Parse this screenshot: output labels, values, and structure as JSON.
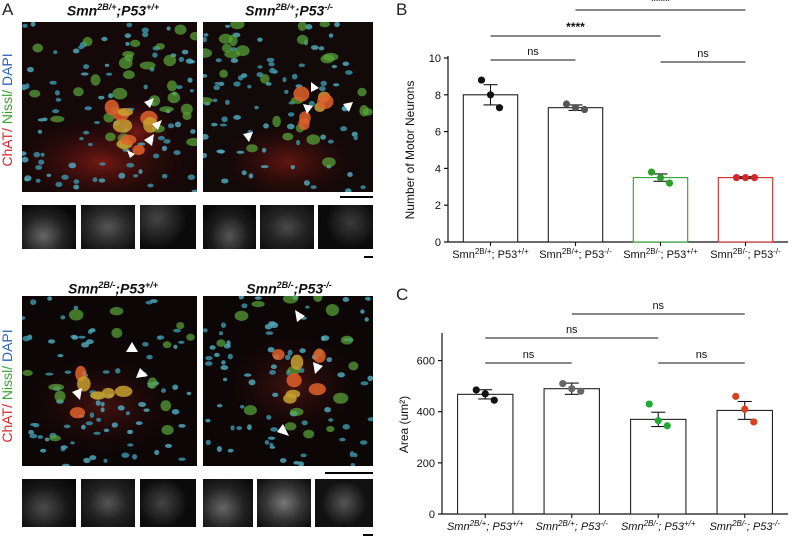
{
  "panel_labels": {
    "a": "A",
    "b": "B",
    "c": "C"
  },
  "panel_a": {
    "genotypes": [
      {
        "pre": "Smn",
        "sup1": "2B/+",
        "mid": ";P53",
        "sup2": "+/+"
      },
      {
        "pre": "Smn",
        "sup1": "2B/+",
        "mid": ";P53",
        "sup2": "-/-"
      },
      {
        "pre": "Smn",
        "sup1": "2B/-",
        "mid": ";P53",
        "sup2": "+/+"
      },
      {
        "pre": "Smn",
        "sup1": "2B/-",
        "mid": ";P53",
        "sup2": "-/-"
      }
    ],
    "stain_label": {
      "chat": "ChAT/",
      "nissl": " Nissl/",
      "dapi": " DAPI"
    },
    "colors": {
      "chat": "#d8242a",
      "nissl": "#3aa332",
      "dapi": "#2d64b8"
    }
  },
  "chart_data": [
    {
      "type": "bar",
      "panel": "B",
      "ylabel": "Number of Motor Neurons",
      "ylim": [
        0,
        10
      ],
      "yticks": [
        0,
        2,
        4,
        6,
        8,
        10
      ],
      "categories": [
        {
          "pre": "Smn",
          "sup1": "2B/+",
          "mid": "; P53",
          "sup2": "+/+"
        },
        {
          "pre": "Smn",
          "sup1": "2B/+",
          "mid": "; P53",
          "sup2": "-/-"
        },
        {
          "pre": "Smn",
          "sup1": "2B/-",
          "mid": "; P53",
          "sup2": "+/+"
        },
        {
          "pre": "Smn",
          "sup1": "2B/-",
          "mid": "; P53",
          "sup2": "-/-"
        }
      ],
      "values": [
        8.0,
        7.3,
        3.5,
        3.5
      ],
      "errors": [
        0.55,
        0.15,
        0.2,
        0.05
      ],
      "points": [
        [
          8.8,
          8.0,
          7.3
        ],
        [
          7.5,
          7.3,
          7.2
        ],
        [
          3.8,
          3.5,
          3.2
        ],
        [
          3.5,
          3.5,
          3.5
        ]
      ],
      "bar_colors": [
        "#222222",
        "#222222",
        "#2ca02c",
        "#d62728"
      ],
      "point_colors": [
        "#111111",
        "#555555",
        "#2ca02c",
        "#d62728"
      ],
      "comparisons": [
        {
          "from": 0,
          "to": 1,
          "label": "ns"
        },
        {
          "from": 2,
          "to": 3,
          "label": "ns"
        },
        {
          "from": 0,
          "to": 2,
          "label": "****"
        },
        {
          "from": 1,
          "to": 3,
          "label": "****"
        }
      ],
      "grid": false,
      "italic_ticks": false
    },
    {
      "type": "bar",
      "panel": "C",
      "ylabel": "Area (um²)",
      "ylim": [
        0,
        700
      ],
      "yticks": [
        0,
        200,
        400,
        600
      ],
      "categories": [
        {
          "pre": "Smn",
          "sup1": "2B/+",
          "mid": "; P53",
          "sup2": "+/+"
        },
        {
          "pre": "Smn",
          "sup1": "2B/+",
          "mid": "; P53",
          "sup2": "-/-"
        },
        {
          "pre": "Smn",
          "sup1": "2B/-",
          "mid": "; P53",
          "sup2": "+/+"
        },
        {
          "pre": "Smn",
          "sup1": "2B/-",
          "mid": "; P53",
          "sup2": "-/-"
        }
      ],
      "values": [
        468,
        490,
        370,
        405
      ],
      "errors": [
        18,
        22,
        28,
        35
      ],
      "points": [
        [
          485,
          470,
          445
        ],
        [
          510,
          490,
          480
        ],
        [
          430,
          365,
          345
        ],
        [
          460,
          410,
          360
        ]
      ],
      "bar_colors": [
        "#222222",
        "#222222",
        "#222222",
        "#222222"
      ],
      "point_colors": [
        "#111111",
        "#666666",
        "#22aa33",
        "#d9401e"
      ],
      "comparisons": [
        {
          "from": 0,
          "to": 1,
          "label": "ns"
        },
        {
          "from": 2,
          "to": 3,
          "label": "ns"
        },
        {
          "from": 0,
          "to": 2,
          "label": "ns"
        },
        {
          "from": 1,
          "to": 3,
          "label": "ns"
        }
      ],
      "grid": false,
      "italic_ticks": true
    }
  ]
}
